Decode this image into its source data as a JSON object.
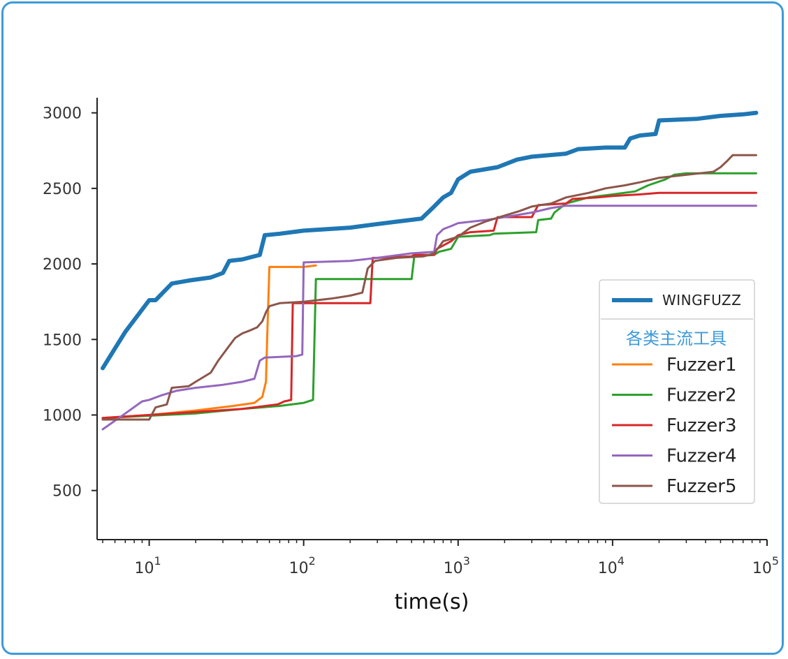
{
  "colors": {
    "frame": "#3d9ad8",
    "section_title": "#3d9ad8",
    "axis": "#222222"
  },
  "chart_data": {
    "type": "line",
    "xlabel": "time(s)",
    "ylabel": "",
    "x_scale": "log",
    "xlim": [
      4.6,
      100000
    ],
    "ylim": [
      175,
      3100
    ],
    "yticks": [
      500,
      1000,
      1500,
      2000,
      2500,
      3000
    ],
    "xticks": [
      {
        "base": "10",
        "exp": "1",
        "value": 10
      },
      {
        "base": "10",
        "exp": "2",
        "value": 100
      },
      {
        "base": "10",
        "exp": "3",
        "value": 1000
      },
      {
        "base": "10",
        "exp": "4",
        "value": 10000
      },
      {
        "base": "10",
        "exp": "5",
        "value": 100000
      }
    ],
    "legend_placement": "right",
    "legend_section_title": "各类主流工具",
    "series": [
      {
        "name": "WINGFUZZ",
        "color": "#1f77b4",
        "width": 6,
        "points": [
          [
            5,
            1310
          ],
          [
            7,
            1550
          ],
          [
            10,
            1760
          ],
          [
            11,
            1760
          ],
          [
            14,
            1870
          ],
          [
            18,
            1890
          ],
          [
            25,
            1910
          ],
          [
            30,
            1940
          ],
          [
            33,
            2020
          ],
          [
            40,
            2030
          ],
          [
            52,
            2060
          ],
          [
            56,
            2190
          ],
          [
            70,
            2200
          ],
          [
            100,
            2220
          ],
          [
            200,
            2240
          ],
          [
            280,
            2260
          ],
          [
            400,
            2280
          ],
          [
            580,
            2300
          ],
          [
            700,
            2380
          ],
          [
            800,
            2440
          ],
          [
            900,
            2470
          ],
          [
            1000,
            2560
          ],
          [
            1200,
            2610
          ],
          [
            1800,
            2640
          ],
          [
            2400,
            2690
          ],
          [
            3000,
            2710
          ],
          [
            5000,
            2730
          ],
          [
            6000,
            2760
          ],
          [
            9000,
            2770
          ],
          [
            12000,
            2770
          ],
          [
            13000,
            2830
          ],
          [
            15000,
            2850
          ],
          [
            19000,
            2860
          ],
          [
            20000,
            2950
          ],
          [
            35000,
            2960
          ],
          [
            50000,
            2980
          ],
          [
            70000,
            2990
          ],
          [
            85000,
            3000
          ]
        ]
      },
      {
        "name": "Fuzzer1",
        "color": "#ff7f0e",
        "width": 3,
        "points": [
          [
            5,
            980
          ],
          [
            10,
            1000
          ],
          [
            20,
            1030
          ],
          [
            35,
            1060
          ],
          [
            48,
            1080
          ],
          [
            54,
            1120
          ],
          [
            57,
            1220
          ],
          [
            58,
            1500
          ],
          [
            60,
            1980
          ],
          [
            75,
            1980
          ],
          [
            100,
            1980
          ],
          [
            120,
            1990
          ]
        ]
      },
      {
        "name": "Fuzzer2",
        "color": "#2ca02c",
        "width": 3,
        "points": [
          [
            5,
            980
          ],
          [
            20,
            1010
          ],
          [
            40,
            1040
          ],
          [
            70,
            1060
          ],
          [
            100,
            1080
          ],
          [
            115,
            1100
          ],
          [
            120,
            1900
          ],
          [
            300,
            1900
          ],
          [
            500,
            1900
          ],
          [
            520,
            2050
          ],
          [
            700,
            2060
          ],
          [
            750,
            2080
          ],
          [
            900,
            2100
          ],
          [
            1000,
            2180
          ],
          [
            1600,
            2190
          ],
          [
            1700,
            2200
          ],
          [
            3200,
            2210
          ],
          [
            3300,
            2290
          ],
          [
            4000,
            2300
          ],
          [
            4200,
            2340
          ],
          [
            5000,
            2400
          ],
          [
            7000,
            2440
          ],
          [
            10000,
            2460
          ],
          [
            14000,
            2480
          ],
          [
            17000,
            2520
          ],
          [
            22000,
            2560
          ],
          [
            25000,
            2590
          ],
          [
            30000,
            2600
          ],
          [
            85000,
            2600
          ]
        ]
      },
      {
        "name": "Fuzzer3",
        "color": "#d62728",
        "width": 3,
        "points": [
          [
            5,
            980
          ],
          [
            40,
            1040
          ],
          [
            68,
            1070
          ],
          [
            75,
            1090
          ],
          [
            83,
            1100
          ],
          [
            85,
            1740
          ],
          [
            150,
            1740
          ],
          [
            200,
            1740
          ],
          [
            270,
            1740
          ],
          [
            280,
            2040
          ],
          [
            300,
            2040
          ],
          [
            500,
            2050
          ],
          [
            520,
            2060
          ],
          [
            700,
            2060
          ],
          [
            730,
            2100
          ],
          [
            900,
            2150
          ],
          [
            1000,
            2190
          ],
          [
            1200,
            2210
          ],
          [
            1700,
            2220
          ],
          [
            1800,
            2310
          ],
          [
            3000,
            2310
          ],
          [
            3300,
            2390
          ],
          [
            5000,
            2400
          ],
          [
            5500,
            2430
          ],
          [
            8000,
            2440
          ],
          [
            10000,
            2450
          ],
          [
            15000,
            2460
          ],
          [
            20000,
            2470
          ],
          [
            85000,
            2470
          ]
        ]
      },
      {
        "name": "Fuzzer4",
        "color": "#9467bd",
        "width": 3,
        "points": [
          [
            5,
            905
          ],
          [
            7,
            1010
          ],
          [
            9,
            1090
          ],
          [
            10,
            1100
          ],
          [
            12,
            1130
          ],
          [
            15,
            1160
          ],
          [
            20,
            1180
          ],
          [
            30,
            1200
          ],
          [
            40,
            1220
          ],
          [
            48,
            1240
          ],
          [
            52,
            1360
          ],
          [
            56,
            1380
          ],
          [
            90,
            1390
          ],
          [
            98,
            1400
          ],
          [
            100,
            2010
          ],
          [
            200,
            2020
          ],
          [
            300,
            2040
          ],
          [
            500,
            2070
          ],
          [
            700,
            2080
          ],
          [
            730,
            2190
          ],
          [
            800,
            2230
          ],
          [
            900,
            2250
          ],
          [
            1000,
            2270
          ],
          [
            1500,
            2290
          ],
          [
            2000,
            2310
          ],
          [
            3000,
            2340
          ],
          [
            4000,
            2370
          ],
          [
            5000,
            2385
          ],
          [
            85000,
            2385
          ]
        ]
      },
      {
        "name": "Fuzzer5",
        "color": "#8c564b",
        "width": 3,
        "points": [
          [
            5,
            970
          ],
          [
            10,
            970
          ],
          [
            11,
            1050
          ],
          [
            13,
            1070
          ],
          [
            14,
            1180
          ],
          [
            18,
            1190
          ],
          [
            20,
            1220
          ],
          [
            25,
            1280
          ],
          [
            28,
            1360
          ],
          [
            32,
            1440
          ],
          [
            36,
            1510
          ],
          [
            40,
            1540
          ],
          [
            45,
            1560
          ],
          [
            50,
            1580
          ],
          [
            54,
            1620
          ],
          [
            57,
            1680
          ],
          [
            60,
            1720
          ],
          [
            70,
            1740
          ],
          [
            100,
            1750
          ],
          [
            150,
            1770
          ],
          [
            200,
            1790
          ],
          [
            240,
            1810
          ],
          [
            260,
            1970
          ],
          [
            290,
            2020
          ],
          [
            400,
            2040
          ],
          [
            600,
            2050
          ],
          [
            700,
            2070
          ],
          [
            800,
            2150
          ],
          [
            1000,
            2180
          ],
          [
            1200,
            2240
          ],
          [
            1500,
            2280
          ],
          [
            2000,
            2320
          ],
          [
            2500,
            2350
          ],
          [
            3000,
            2380
          ],
          [
            4000,
            2400
          ],
          [
            5000,
            2440
          ],
          [
            7000,
            2470
          ],
          [
            9000,
            2500
          ],
          [
            12000,
            2520
          ],
          [
            15000,
            2540
          ],
          [
            20000,
            2570
          ],
          [
            30000,
            2590
          ],
          [
            45000,
            2610
          ],
          [
            50000,
            2640
          ],
          [
            55000,
            2680
          ],
          [
            60000,
            2720
          ],
          [
            85000,
            2720
          ]
        ]
      }
    ]
  }
}
